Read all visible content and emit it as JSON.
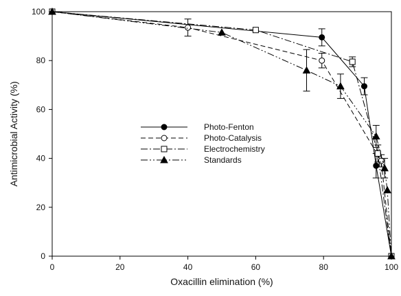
{
  "chart_data": {
    "type": "line",
    "xlabel": "Oxacillin elimination (%)",
    "ylabel": "Antimicrobial Activity  (%)",
    "xlim": [
      0,
      100
    ],
    "ylim": [
      0,
      100
    ],
    "xticks": [
      0,
      20,
      40,
      60,
      80,
      100
    ],
    "yticks": [
      0,
      20,
      40,
      60,
      80,
      100
    ],
    "grid": false,
    "legend_position": "center-left",
    "series": [
      {
        "name": "Photo-Fenton",
        "line": "solid",
        "marker": "filled-circle",
        "points": [
          {
            "x": 0,
            "y": 100
          },
          {
            "x": 79.5,
            "y": 89.5,
            "err": 3.5
          },
          {
            "x": 92,
            "y": 69.5,
            "err": 3.5
          },
          {
            "x": 95.5,
            "y": 37,
            "err": 5
          },
          {
            "x": 100,
            "y": 0
          }
        ]
      },
      {
        "name": "Photo-Catalysis",
        "line": "dash",
        "marker": "open-circle",
        "points": [
          {
            "x": 0,
            "y": 100
          },
          {
            "x": 40,
            "y": 93.5,
            "err": 3.5
          },
          {
            "x": 79.5,
            "y": 80,
            "err": 3
          },
          {
            "x": 97,
            "y": 39,
            "err": 2.5
          },
          {
            "x": 100,
            "y": 0
          }
        ]
      },
      {
        "name": "Electrochemistry",
        "line": "dash-dot",
        "marker": "open-square",
        "points": [
          {
            "x": 0,
            "y": 100
          },
          {
            "x": 60,
            "y": 92.5
          },
          {
            "x": 88.5,
            "y": 79.5,
            "err": 2
          },
          {
            "x": 96,
            "y": 42,
            "err": 3.5
          },
          {
            "x": 100,
            "y": 0
          }
        ]
      },
      {
        "name": "Standards",
        "line": "dash-dot-dot",
        "marker": "filled-triangle",
        "points": [
          {
            "x": 0,
            "y": 100
          },
          {
            "x": 50,
            "y": 91.5
          },
          {
            "x": 75,
            "y": 76,
            "err": 8.5
          },
          {
            "x": 85,
            "y": 69.5,
            "err": 5
          },
          {
            "x": 95.5,
            "y": 49,
            "err": 4.5
          },
          {
            "x": 98,
            "y": 36,
            "err": 4
          },
          {
            "x": 98.8,
            "y": 27
          },
          {
            "x": 100,
            "y": 0
          }
        ]
      }
    ]
  }
}
